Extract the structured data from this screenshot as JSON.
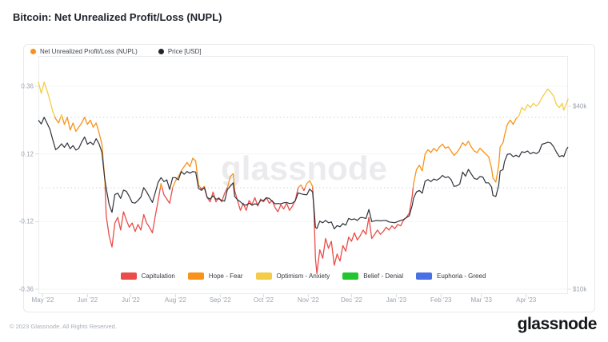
{
  "page": {
    "title": "Bitcoin: Net Unrealized Profit/Loss (NUPL)"
  },
  "watermark": "glassnode",
  "footer": {
    "copyright": "© 2023 Glassnode. All Rights Reserved.",
    "wordmark": "glassnode"
  },
  "legend_top": [
    {
      "label": "Net Unrealized Profit/Loss (NUPL)",
      "color": "#f7931a"
    },
    {
      "label": "Price [USD]",
      "color": "#222529"
    }
  ],
  "legend_bands": [
    {
      "label": "Capitulation",
      "color": "#ea4d49"
    },
    {
      "label": "Hope - Fear",
      "color": "#f7931a"
    },
    {
      "label": "Optimism - Anxiety",
      "color": "#f3cd47"
    },
    {
      "label": "Belief - Denial",
      "color": "#21c52f"
    },
    {
      "label": "Euphoria - Greed",
      "color": "#4a71e4"
    }
  ],
  "chart_data": {
    "type": "line",
    "title": "Bitcoin: Net Unrealized Profit/Loss (NUPL)",
    "x_domain_days": 367,
    "x_ticks": [
      {
        "label": "May '22",
        "day": 3
      },
      {
        "label": "Jun '22",
        "day": 34
      },
      {
        "label": "Jul '22",
        "day": 64
      },
      {
        "label": "Aug '22",
        "day": 95
      },
      {
        "label": "Sep '22",
        "day": 126
      },
      {
        "label": "Oct '22",
        "day": 156
      },
      {
        "label": "Nov '22",
        "day": 187
      },
      {
        "label": "Dec '22",
        "day": 217
      },
      {
        "label": "Jan '23",
        "day": 248
      },
      {
        "label": "Feb '23",
        "day": 279
      },
      {
        "label": "Mar '23",
        "day": 307
      },
      {
        "label": "Apr '23",
        "day": 338
      }
    ],
    "left_axis": {
      "ticks": [
        {
          "label": "0.36",
          "value": 0.36
        },
        {
          "label": "0.12",
          "value": 0.12
        },
        {
          "label": "-0.12",
          "value": -0.12
        },
        {
          "label": "-0.36",
          "value": -0.36
        }
      ],
      "dotted_levels": [
        0.25,
        0
      ]
    },
    "right_axis": {
      "scale": "log",
      "ticks": [
        {
          "label": "$40k",
          "value": 40000
        },
        {
          "label": "$10k",
          "value": 10000
        }
      ]
    },
    "days": [
      0,
      2,
      4,
      6,
      8,
      10,
      12,
      14,
      16,
      18,
      20,
      22,
      24,
      26,
      28,
      30,
      32,
      34,
      36,
      38,
      40,
      42,
      44,
      46,
      47,
      49,
      51,
      53,
      55,
      57,
      59,
      61,
      63,
      65,
      67,
      69,
      71,
      73,
      75,
      77,
      79,
      81,
      83,
      85,
      87,
      89,
      91,
      93,
      95,
      97,
      99,
      101,
      103,
      105,
      107,
      109,
      111,
      113,
      115,
      117,
      119,
      121,
      123,
      125,
      127,
      129,
      131,
      133,
      135,
      136,
      138,
      140,
      142,
      144,
      146,
      148,
      150,
      152,
      154,
      156,
      158,
      160,
      162,
      164,
      166,
      168,
      170,
      172,
      174,
      176,
      178,
      180,
      182,
      184,
      186,
      188,
      190,
      191,
      192,
      193,
      195,
      197,
      199,
      201,
      203,
      205,
      207,
      209,
      211,
      213,
      215,
      217,
      219,
      221,
      223,
      225,
      227,
      229,
      231,
      233,
      235,
      237,
      239,
      241,
      243,
      245,
      247,
      249,
      251,
      253,
      255,
      257,
      259,
      260,
      262,
      264,
      266,
      268,
      270,
      272,
      274,
      276,
      278,
      280,
      282,
      284,
      286,
      288,
      290,
      292,
      294,
      296,
      298,
      300,
      302,
      304,
      306,
      308,
      310,
      312,
      314,
      315,
      317,
      319,
      320,
      322,
      323,
      325,
      327,
      329,
      331,
      333,
      335,
      337,
      339,
      341,
      343,
      345,
      347,
      349,
      351,
      353,
      355,
      357,
      359,
      361,
      363,
      364,
      366,
      367
    ],
    "series": [
      {
        "name": "Net Unrealized Profit/Loss (NUPL)",
        "axis": "left",
        "color_rule": {
          "thresholds": [
            0,
            0.25
          ],
          "below0": "#ea4d49",
          "mid": "#f7931a",
          "above025": "#f3cd47"
        },
        "values": [
          0.375,
          0.335,
          0.375,
          0.345,
          0.31,
          0.27,
          0.245,
          0.23,
          0.26,
          0.225,
          0.25,
          0.205,
          0.23,
          0.2,
          0.215,
          0.23,
          0.25,
          0.225,
          0.24,
          0.215,
          0.23,
          0.195,
          0.155,
          0.03,
          -0.1,
          -0.17,
          -0.21,
          -0.125,
          -0.105,
          -0.15,
          -0.085,
          -0.115,
          -0.14,
          -0.125,
          -0.155,
          -0.13,
          -0.15,
          -0.095,
          -0.125,
          -0.14,
          -0.16,
          -0.1,
          -0.045,
          0.015,
          -0.025,
          -0.04,
          -0.055,
          0,
          0.025,
          0.04,
          0.06,
          0.075,
          0.09,
          0.075,
          0.105,
          0.095,
          0.01,
          -0.005,
          0.005,
          -0.035,
          -0.05,
          -0.015,
          -0.05,
          -0.035,
          -0.05,
          -0.02,
          0,
          0.04,
          0.05,
          -0.01,
          -0.045,
          -0.08,
          -0.055,
          -0.08,
          -0.045,
          -0.06,
          -0.035,
          -0.065,
          -0.04,
          -0.05,
          -0.035,
          -0.055,
          -0.045,
          -0.07,
          -0.085,
          -0.06,
          -0.075,
          -0.055,
          -0.08,
          -0.065,
          -0.045,
          0,
          0.01,
          -0.01,
          0.015,
          0.025,
          0.005,
          -0.09,
          -0.25,
          -0.305,
          -0.22,
          -0.25,
          -0.18,
          -0.215,
          -0.19,
          -0.275,
          -0.235,
          -0.26,
          -0.205,
          -0.225,
          -0.175,
          -0.19,
          -0.16,
          -0.185,
          -0.17,
          -0.15,
          -0.165,
          -0.105,
          -0.18,
          -0.165,
          -0.15,
          -0.165,
          -0.155,
          -0.14,
          -0.15,
          -0.135,
          -0.145,
          -0.13,
          -0.135,
          -0.115,
          -0.105,
          -0.09,
          -0.03,
          0.015,
          0.065,
          0.08,
          0.06,
          0.12,
          0.135,
          0.125,
          0.14,
          0.13,
          0.145,
          0.155,
          0.14,
          0.145,
          0.13,
          0.115,
          0.125,
          0.14,
          0.16,
          0.15,
          0.165,
          0.145,
          0.13,
          0.125,
          0.14,
          0.13,
          0.12,
          0.11,
          0.07,
          0.035,
          0.02,
          0.08,
          0.145,
          0.16,
          0.185,
          0.225,
          0.24,
          0.225,
          0.245,
          0.255,
          0.285,
          0.275,
          0.295,
          0.285,
          0.3,
          0.29,
          0.3,
          0.32,
          0.335,
          0.35,
          0.34,
          0.325,
          0.295,
          0.285,
          0.3,
          0.275,
          0.3,
          0.315
        ]
      },
      {
        "name": "Price [USD]",
        "axis": "right",
        "color": "#2f333a",
        "values": [
          36000,
          35000,
          36800,
          35200,
          33600,
          31000,
          28800,
          29300,
          30100,
          29300,
          30300,
          29000,
          29700,
          28700,
          29100,
          30500,
          31700,
          30000,
          30500,
          29900,
          31300,
          30100,
          28200,
          23000,
          21500,
          19000,
          17900,
          20500,
          20700,
          19900,
          21200,
          21000,
          20200,
          19300,
          19200,
          19600,
          20100,
          21600,
          20900,
          20100,
          19300,
          20800,
          22500,
          23300,
          22600,
          22900,
          21300,
          23300,
          23300,
          22900,
          24400,
          23900,
          24400,
          24100,
          24400,
          24300,
          21500,
          21150,
          21600,
          20050,
          19800,
          20300,
          19800,
          19850,
          19600,
          19500,
          21300,
          21850,
          22400,
          20200,
          19700,
          19400,
          19000,
          18900,
          19200,
          18900,
          19100,
          19000,
          19600,
          19600,
          20000,
          19900,
          19500,
          19100,
          19150,
          19100,
          19250,
          19300,
          19150,
          19200,
          19550,
          20750,
          20600,
          20500,
          20450,
          21350,
          20900,
          18550,
          16000,
          15850,
          16750,
          16550,
          16850,
          16550,
          16650,
          15800,
          16200,
          16050,
          16450,
          16250,
          17100,
          16950,
          17050,
          16850,
          17200,
          17200,
          17100,
          18300,
          16700,
          16800,
          16850,
          16800,
          16850,
          16850,
          16650,
          16600,
          16550,
          16700,
          16850,
          16950,
          17200,
          17450,
          18850,
          19950,
          20900,
          21150,
          20700,
          22700,
          22950,
          22600,
          23050,
          22850,
          23150,
          23700,
          23300,
          23450,
          22950,
          21800,
          21900,
          22200,
          24300,
          23550,
          24800,
          23950,
          23150,
          23000,
          23500,
          23400,
          22400,
          22400,
          21700,
          20350,
          20200,
          22000,
          24500,
          24750,
          26300,
          27800,
          27900,
          27300,
          27600,
          27250,
          28350,
          28200,
          28500,
          27900,
          28250,
          27950,
          28350,
          30000,
          30200,
          30450,
          30300,
          29450,
          28250,
          27300,
          27550,
          27300,
          28900,
          29350
        ]
      }
    ]
  }
}
